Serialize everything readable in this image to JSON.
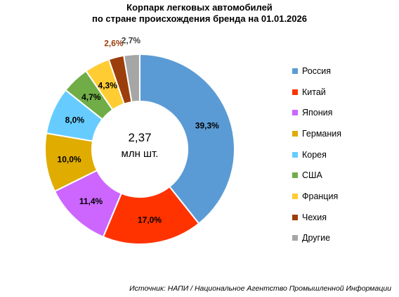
{
  "chart_data": {
    "type": "donut",
    "title_line1": "Корпарк легковых автомобилей",
    "title_line2": "по стране происхождения бренда на 01.01.2026",
    "center_value": "2,37",
    "center_unit": "млн шт.",
    "slices": [
      {
        "name": "Россия",
        "value": 39.3,
        "label": "39,3%",
        "color": "#5B9BD5",
        "label_color": "#000000"
      },
      {
        "name": "Китай",
        "value": 17.0,
        "label": "17,0%",
        "color": "#FF3300",
        "label_color": "#000000"
      },
      {
        "name": "Япония",
        "value": 11.4,
        "label": "11,4%",
        "color": "#CC66FF",
        "label_color": "#000000"
      },
      {
        "name": "Германия",
        "value": 10.0,
        "label": "10,0%",
        "color": "#E0AC00",
        "label_color": "#000000"
      },
      {
        "name": "Корея",
        "value": 8.0,
        "label": "8,0%",
        "color": "#66CCFF",
        "label_color": "#000000"
      },
      {
        "name": "США",
        "value": 4.7,
        "label": "4,7%",
        "color": "#70AD47",
        "label_color": "#000000"
      },
      {
        "name": "Франция",
        "value": 4.3,
        "label": "4,3%",
        "color": "#FFCC33",
        "label_color": "#000000"
      },
      {
        "name": "Чехия",
        "value": 2.6,
        "label": "2,6%",
        "color": "#9C3E0B",
        "label_color": "#9C3E0B"
      },
      {
        "name": "Другие",
        "value": 2.7,
        "label": "2,7%",
        "color": "#A6A6A6",
        "label_color": "#404040"
      }
    ],
    "legend_position": "right"
  },
  "source": "Источник: НАПИ / Национальное Агентство Промышленной Информации"
}
